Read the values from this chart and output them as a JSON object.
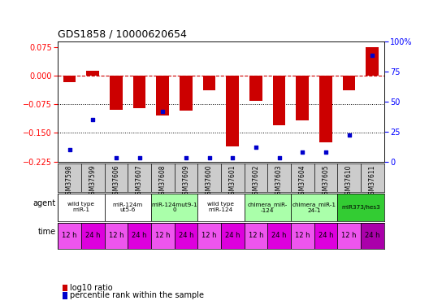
{
  "title": "GDS1858 / 10000620654",
  "samples": [
    "GSM37598",
    "GSM37599",
    "GSM37606",
    "GSM37607",
    "GSM37608",
    "GSM37609",
    "GSM37600",
    "GSM37601",
    "GSM37602",
    "GSM37603",
    "GSM37604",
    "GSM37605",
    "GSM37610",
    "GSM37611"
  ],
  "log10_ratio": [
    -0.018,
    0.013,
    -0.09,
    -0.085,
    -0.105,
    -0.092,
    -0.038,
    -0.185,
    -0.065,
    -0.13,
    -0.118,
    -0.175,
    -0.038,
    0.075
  ],
  "percentile_rank": [
    10,
    35,
    3,
    3,
    42,
    3,
    3,
    3,
    12,
    3,
    8,
    8,
    22,
    88
  ],
  "agents": [
    {
      "label": "wild type\nmiR-1",
      "cols": [
        0,
        1
      ],
      "color": "#ffffff"
    },
    {
      "label": "miR-124m\nut5-6",
      "cols": [
        2,
        3
      ],
      "color": "#ffffff"
    },
    {
      "label": "miR-124mut9-1\n0",
      "cols": [
        4,
        5
      ],
      "color": "#aaffaa"
    },
    {
      "label": "wild type\nmiR-124",
      "cols": [
        6,
        7
      ],
      "color": "#ffffff"
    },
    {
      "label": "chimera_miR-\n-124",
      "cols": [
        8,
        9
      ],
      "color": "#aaffaa"
    },
    {
      "label": "chimera_miR-1\n24-1",
      "cols": [
        10,
        11
      ],
      "color": "#aaffaa"
    },
    {
      "label": "miR373/hes3",
      "cols": [
        12,
        13
      ],
      "color": "#33cc33"
    }
  ],
  "time_labels": [
    "12 h",
    "24 h",
    "12 h",
    "24 h",
    "12 h",
    "24 h",
    "12 h",
    "24 h",
    "12 h",
    "24 h",
    "12 h",
    "24 h",
    "12 h",
    "24 h"
  ],
  "time_colors": [
    "#ee55ee",
    "#dd00dd",
    "#ee55ee",
    "#dd00dd",
    "#ee55ee",
    "#dd00dd",
    "#ee55ee",
    "#dd00dd",
    "#ee55ee",
    "#dd00dd",
    "#ee55ee",
    "#dd00dd",
    "#ee55ee",
    "#aa00aa"
  ],
  "ylim": [
    -0.225,
    0.09
  ],
  "yticks_left": [
    0.075,
    0,
    -0.075,
    -0.15,
    -0.225
  ],
  "yticks_right": [
    100,
    75,
    50,
    25,
    0
  ],
  "bar_color": "#cc0000",
  "dot_color": "#0000cc",
  "hline_color": "#cc0000",
  "grid_yticks": [
    -0.075,
    -0.15
  ],
  "bar_width": 0.55,
  "legend_items": [
    {
      "color": "#cc0000",
      "label": "log10 ratio"
    },
    {
      "color": "#0000cc",
      "label": "percentile rank within the sample"
    }
  ],
  "sample_bg": "#cccccc"
}
